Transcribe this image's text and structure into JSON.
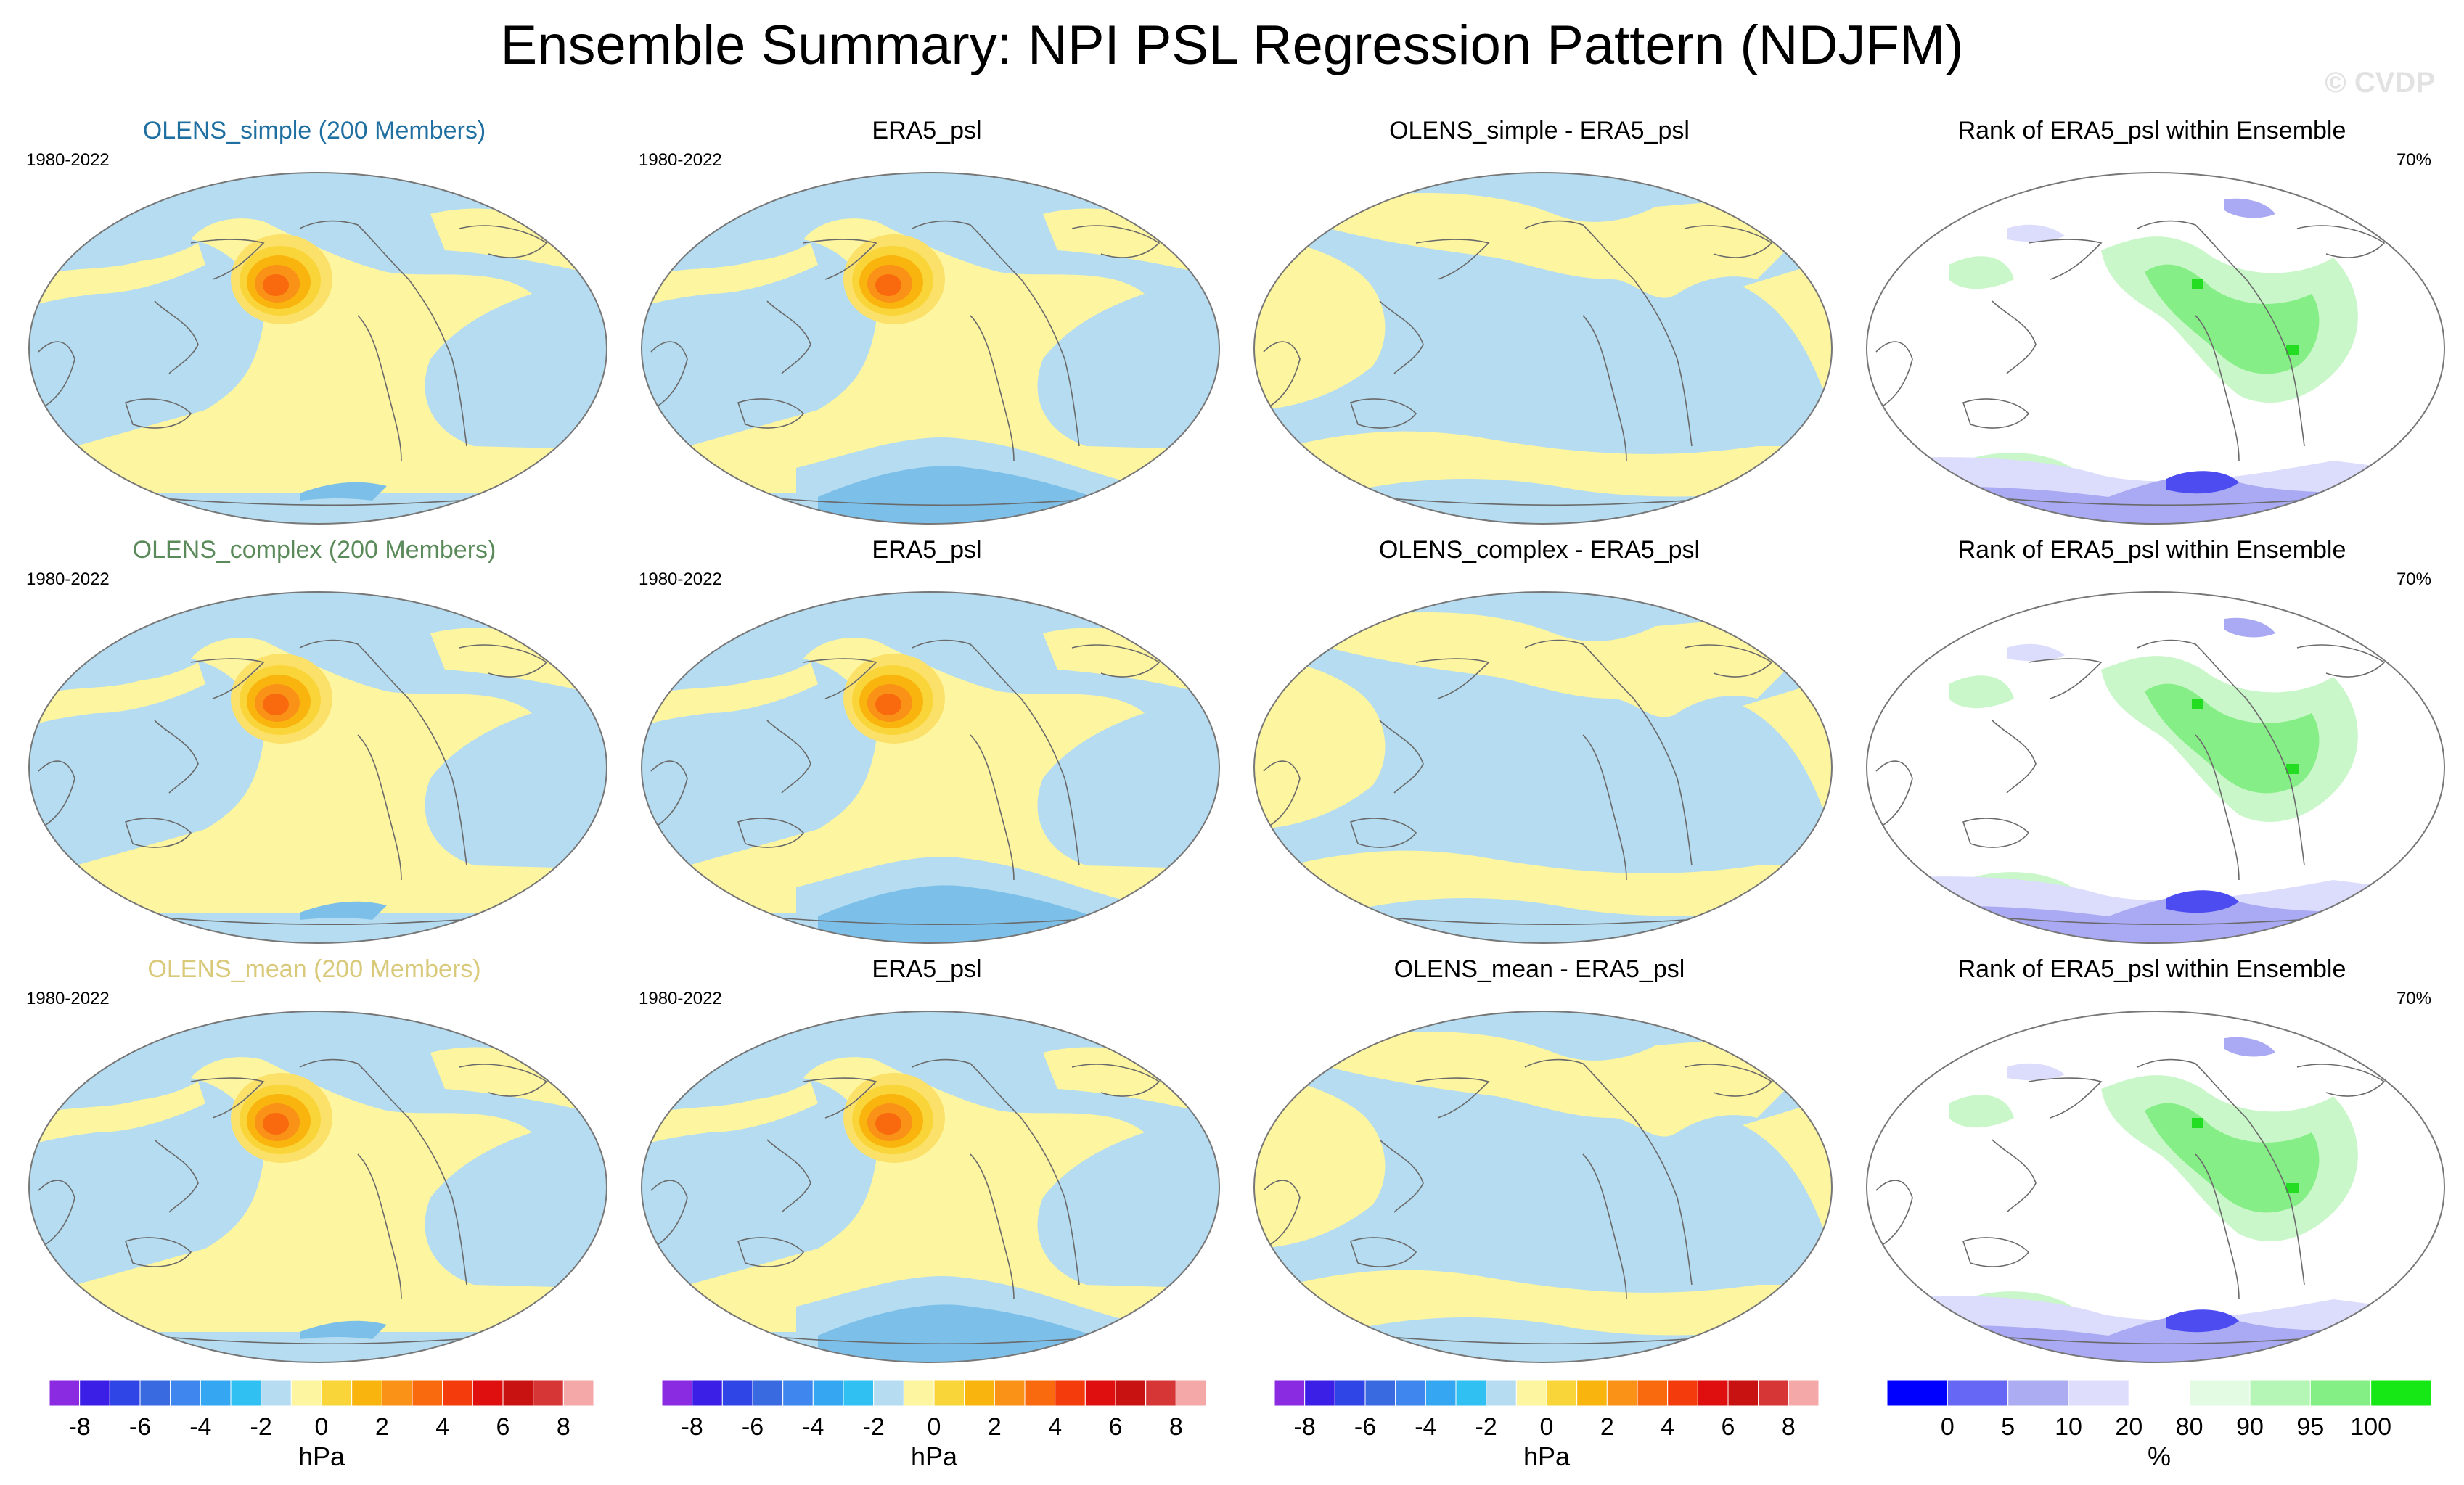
{
  "title": "Ensemble Summary: NPI PSL Regression Pattern (NDJFM)",
  "watermark": "© CVDP",
  "colors": {
    "lightblue": "#b5dcf0",
    "midblue": "#7cc0ea",
    "yellow": "#fdf5a0",
    "white": "#ffffff",
    "green_light": "#c9f7c9",
    "green_mid": "#86ee86",
    "green_strong": "#22dd22",
    "blue_light": "#dcdcfc",
    "blue_mid": "#a9a9f4",
    "blue_strong": "#4c4cf0",
    "coast": "#6a6a6a"
  },
  "rows": [
    {
      "panels": [
        {
          "title": "OLENS_simple (200 Members)",
          "title_color": "#1f6fa0",
          "left_label": "1980-2022",
          "right_label": "",
          "kind": "ens"
        },
        {
          "title": "ERA5_psl",
          "title_color": "#000000",
          "left_label": "1980-2022",
          "right_label": "",
          "kind": "obs"
        },
        {
          "title": "OLENS_simple - ERA5_psl",
          "title_color": "#000000",
          "left_label": "",
          "right_label": "",
          "kind": "diff"
        },
        {
          "title": "Rank of ERA5_psl within Ensemble",
          "title_color": "#000000",
          "left_label": "",
          "right_label": "70%",
          "kind": "rank"
        }
      ]
    },
    {
      "panels": [
        {
          "title": "OLENS_complex (200 Members)",
          "title_color": "#5a8a5a",
          "left_label": "1980-2022",
          "right_label": "",
          "kind": "ens"
        },
        {
          "title": "ERA5_psl",
          "title_color": "#000000",
          "left_label": "1980-2022",
          "right_label": "",
          "kind": "obs"
        },
        {
          "title": "OLENS_complex - ERA5_psl",
          "title_color": "#000000",
          "left_label": "",
          "right_label": "",
          "kind": "diff"
        },
        {
          "title": "Rank of ERA5_psl within Ensemble",
          "title_color": "#000000",
          "left_label": "",
          "right_label": "70%",
          "kind": "rank"
        }
      ]
    },
    {
      "panels": [
        {
          "title": "OLENS_mean (200 Members)",
          "title_color": "#d9c97a",
          "left_label": "1980-2022",
          "right_label": "",
          "kind": "ens"
        },
        {
          "title": "ERA5_psl",
          "title_color": "#000000",
          "left_label": "1980-2022",
          "right_label": "",
          "kind": "obs"
        },
        {
          "title": "OLENS_mean - ERA5_psl",
          "title_color": "#000000",
          "left_label": "",
          "right_label": "",
          "kind": "diff"
        },
        {
          "title": "Rank of ERA5_psl within Ensemble",
          "title_color": "#000000",
          "left_label": "",
          "right_label": "70%",
          "kind": "rank"
        }
      ]
    }
  ],
  "colorbars": {
    "hpa": {
      "unit": "hPa",
      "colors": [
        "#8a2be2",
        "#3b1fe6",
        "#2f45e6",
        "#3a6ae0",
        "#3f86ee",
        "#35a6f2",
        "#31c0f2",
        "#b5dcf0",
        "#fdf5a0",
        "#fad53a",
        "#f9b40d",
        "#f99217",
        "#f96a0e",
        "#f43b0c",
        "#e00f0f",
        "#c81212",
        "#d63636",
        "#f5a8a8"
      ],
      "tick_labels": [
        "-8",
        "-6",
        "-4",
        "-2",
        "0",
        "2",
        "4",
        "6",
        "8"
      ]
    },
    "rank": {
      "unit": "%",
      "colors": [
        "#0000ff",
        "#6767f5",
        "#acacf2",
        "#dedefc",
        "#ffffff",
        "#e2fbe2",
        "#b5f5b5",
        "#84ef84",
        "#16e816"
      ],
      "tick_labels": [
        "0",
        "5",
        "10",
        "20",
        "80",
        "90",
        "95",
        "100"
      ]
    }
  }
}
